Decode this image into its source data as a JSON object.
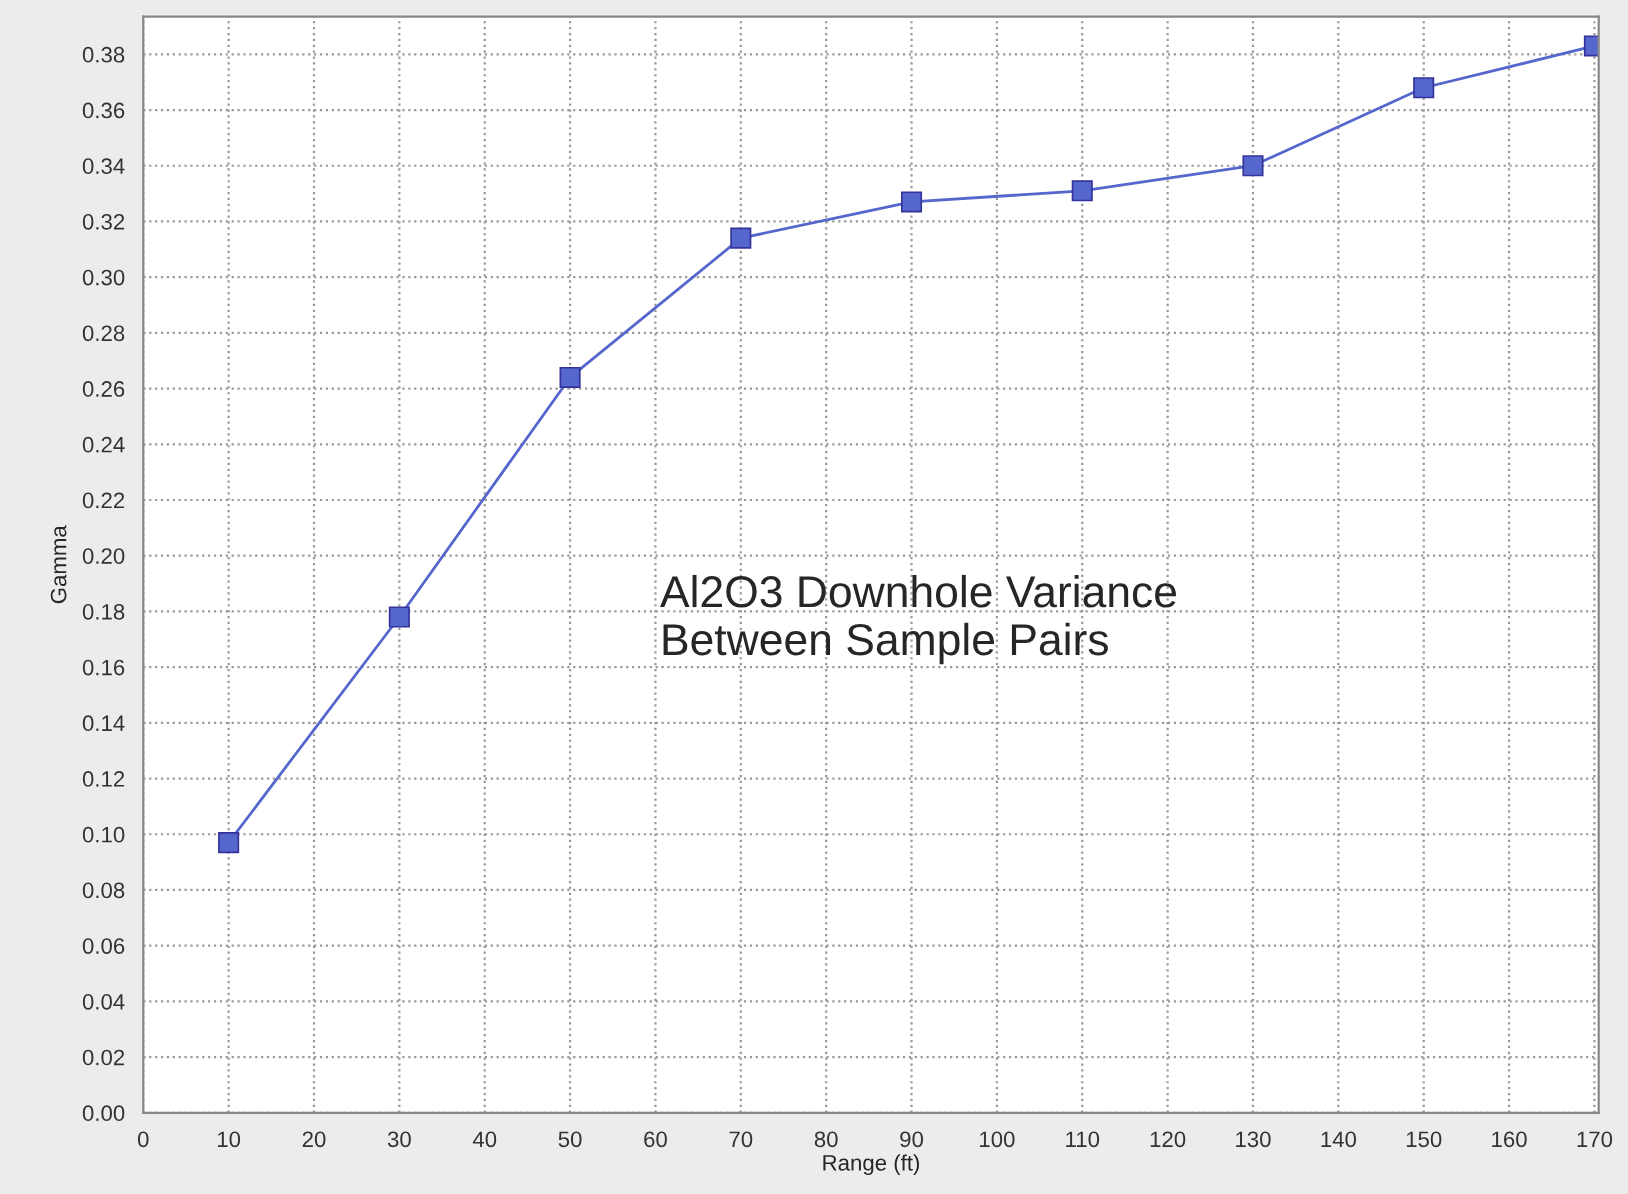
{
  "chart_data": {
    "type": "line",
    "xlabel": "Range (ft)",
    "ylabel": "Gamma",
    "x": [
      10,
      30,
      50,
      70,
      90,
      110,
      130,
      150,
      170
    ],
    "series": [
      {
        "color": "#5566cc",
        "values": [
          0.097,
          0.178,
          0.264,
          0.314,
          0.327,
          0.331,
          0.34,
          0.368,
          0.383
        ]
      }
    ],
    "marker": "square",
    "line_style": "solid",
    "grid": true,
    "xlim": [
      0,
      170.5
    ],
    "ylim": [
      0,
      0.3935
    ],
    "xticks": [
      0,
      10,
      20,
      30,
      40,
      50,
      60,
      70,
      80,
      90,
      100,
      110,
      120,
      130,
      140,
      150,
      160,
      170
    ],
    "yticks": [
      {
        "value": 0,
        "label": "0.00"
      },
      {
        "value": 0.02,
        "label": "0.02"
      },
      {
        "value": 0.04,
        "label": "0.04"
      },
      {
        "value": 0.06,
        "label": "0.06"
      },
      {
        "value": 0.08,
        "label": "0.08"
      },
      {
        "value": 0.1,
        "label": "0.10"
      },
      {
        "value": 0.12,
        "label": "0.12"
      },
      {
        "value": 0.14,
        "label": "0.14"
      },
      {
        "value": 0.16,
        "label": "0.16"
      },
      {
        "value": 0.18,
        "label": "0.18"
      },
      {
        "value": 0.2,
        "label": "0.20"
      },
      {
        "value": 0.22,
        "label": "0.22"
      },
      {
        "value": 0.24,
        "label": "0.24"
      },
      {
        "value": 0.26,
        "label": "0.26"
      },
      {
        "value": 0.28,
        "label": "0.28"
      },
      {
        "value": 0.3,
        "label": "0.30"
      },
      {
        "value": 0.32,
        "label": "0.32"
      },
      {
        "value": 0.34,
        "label": "0.34"
      },
      {
        "value": 0.36,
        "label": "0.36"
      },
      {
        "value": 0.38,
        "label": "0.38"
      }
    ],
    "annotations": [
      "Al2O3 Downhole Variance\nBetween Sample Pairs"
    ]
  }
}
